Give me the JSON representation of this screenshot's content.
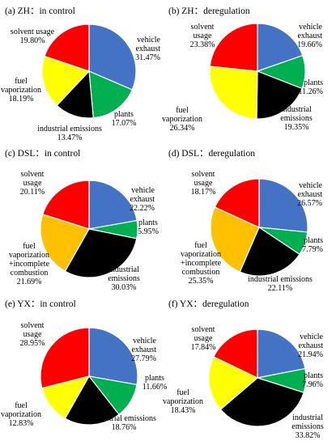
{
  "colors": {
    "blue": "#4472c4",
    "green": "#00b050",
    "black": "#000000",
    "yellow": "#ffff00",
    "orange": "#ffc000",
    "red": "#ff0000"
  },
  "chart_data": [
    {
      "type": "pie",
      "title": "(a)  ZH：in control",
      "slices": [
        {
          "label": [
            "vehicle",
            "exhaust",
            "31.47%"
          ],
          "value": 31.47,
          "color": "#4472c4"
        },
        {
          "label": [
            "plants",
            "17.07%"
          ],
          "value": 17.07,
          "color": "#00b050"
        },
        {
          "label": [
            "industrial emissions",
            "13.47%"
          ],
          "value": 13.47,
          "color": "#000000"
        },
        {
          "label": [
            "fuel",
            "vaporization",
            "18.19%"
          ],
          "value": 18.19,
          "color": "#ffff00"
        },
        {
          "label": [
            "solvent usage",
            "19.80%"
          ],
          "value": 19.8,
          "color": "#ff0000"
        }
      ]
    },
    {
      "type": "pie",
      "title": "(b)  ZH：deregulation",
      "slices": [
        {
          "label": [
            "vehicle",
            "exhaust",
            "19.66%"
          ],
          "value": 19.66,
          "color": "#4472c4"
        },
        {
          "label": [
            "plants",
            "11.26%"
          ],
          "value": 11.26,
          "color": "#00b050"
        },
        {
          "label": [
            "industrial",
            "emissions",
            "19.35%"
          ],
          "value": 19.35,
          "color": "#000000"
        },
        {
          "label": [
            "fuel",
            "vaporization",
            "26.34%"
          ],
          "value": 26.34,
          "color": "#ffff00"
        },
        {
          "label": [
            "solvent",
            "usage",
            "23.38%"
          ],
          "value": 23.38,
          "color": "#ff0000"
        }
      ]
    },
    {
      "type": "pie",
      "title": "(c)  DSL：in control",
      "slices": [
        {
          "label": [
            "vehicle",
            "exhaust",
            "22.22%"
          ],
          "value": 22.22,
          "color": "#4472c4"
        },
        {
          "label": [
            "plants",
            "5.95%"
          ],
          "value": 5.95,
          "color": "#00b050"
        },
        {
          "label": [
            "industrial",
            "emissions",
            "30.03%"
          ],
          "value": 30.03,
          "color": "#000000"
        },
        {
          "label": [
            "fuel",
            "vaporization",
            "+incomplete",
            "combustion",
            "21.69%"
          ],
          "value": 21.69,
          "color": "#ffc000"
        },
        {
          "label": [
            "solvent",
            "usage",
            "20.11%"
          ],
          "value": 20.11,
          "color": "#ff0000"
        }
      ]
    },
    {
      "type": "pie",
      "title": "(d)  DSL：deregulation",
      "slices": [
        {
          "label": [
            "vehicle",
            "exhaust",
            "26.57%"
          ],
          "value": 26.57,
          "color": "#4472c4"
        },
        {
          "label": [
            "plants",
            "7.79%"
          ],
          "value": 7.79,
          "color": "#00b050"
        },
        {
          "label": [
            "industrial emissions",
            "22.11%"
          ],
          "value": 22.11,
          "color": "#000000"
        },
        {
          "label": [
            "fuel",
            "vaporization",
            "+incomplete",
            "combustion",
            "25.35%"
          ],
          "value": 25.35,
          "color": "#ffc000"
        },
        {
          "label": [
            "solvent",
            "usage",
            "18.17%"
          ],
          "value": 18.17,
          "color": "#ff0000"
        }
      ]
    },
    {
      "type": "pie",
      "title": "(e)  YX：in control",
      "slices": [
        {
          "label": [
            "vehicle",
            "exhaust",
            "27.79%"
          ],
          "value": 27.79,
          "color": "#4472c4"
        },
        {
          "label": [
            "plants",
            "11.66%"
          ],
          "value": 11.66,
          "color": "#00b050"
        },
        {
          "label": [
            "industrial emissions",
            "18.76%"
          ],
          "value": 18.76,
          "color": "#000000"
        },
        {
          "label": [
            "fuel",
            "vaporization",
            "12.83%"
          ],
          "value": 12.83,
          "color": "#ffff00"
        },
        {
          "label": [
            "solvent",
            "usage",
            "28.95%"
          ],
          "value": 28.95,
          "color": "#ff0000"
        }
      ]
    },
    {
      "type": "pie",
      "title": "(f)  YX：deregulation",
      "slices": [
        {
          "label": [
            "vehicle",
            "exhaust",
            "21.94%"
          ],
          "value": 21.94,
          "color": "#4472c4"
        },
        {
          "label": [
            "plants",
            "7.96%"
          ],
          "value": 7.96,
          "color": "#00b050"
        },
        {
          "label": [
            "industrial",
            "emissions",
            "33.82%"
          ],
          "value": 33.82,
          "color": "#000000"
        },
        {
          "label": [
            "fuel",
            "vaporization",
            "18.43%"
          ],
          "value": 18.43,
          "color": "#ffff00"
        },
        {
          "label": [
            "solvent",
            "usage",
            "17.84%"
          ],
          "value": 17.84,
          "color": "#ff0000"
        }
      ]
    }
  ]
}
